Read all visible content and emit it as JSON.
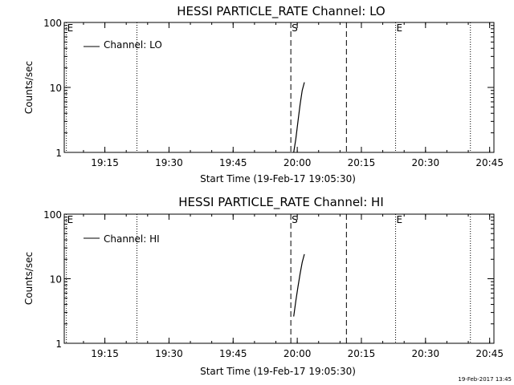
{
  "chart_data": [
    {
      "type": "line",
      "title": "HESSI PARTICLE_RATE Channel: LO",
      "xlabel": "Start Time (19-Feb-17 19:05:30)",
      "ylabel": "Counts/sec",
      "yscale": "log",
      "ylim": [
        1,
        100
      ],
      "xlim": [
        "19:05:30",
        "20:46:00"
      ],
      "xticks": [
        "19:15",
        "19:30",
        "19:45",
        "20:00",
        "20:15",
        "20:30",
        "20:45"
      ],
      "yticks": [
        "1",
        "10",
        "100"
      ],
      "legend": "top-left",
      "series": [
        {
          "name": "Channel: LO",
          "x": [
            "19:59:10",
            "19:59:40",
            "20:00:10",
            "20:00:40",
            "20:01:10",
            "20:01:40"
          ],
          "y": [
            1.0,
            1.6,
            3.0,
            5.5,
            9.0,
            12.0
          ]
        }
      ],
      "markers": [
        {
          "time": "19:06:00",
          "style": "dotted",
          "label": "E"
        },
        {
          "time": "19:22:30",
          "style": "dotted",
          "label": ""
        },
        {
          "time": "19:58:30",
          "style": "dashed",
          "label": "S"
        },
        {
          "time": "20:11:30",
          "style": "dashed",
          "label": ""
        },
        {
          "time": "20:23:00",
          "style": "dotted",
          "label": "E"
        },
        {
          "time": "20:40:30",
          "style": "dotted",
          "label": ""
        }
      ]
    },
    {
      "type": "line",
      "title": "HESSI PARTICLE_RATE Channel: HI",
      "xlabel": "Start Time (19-Feb-17 19:05:30)",
      "ylabel": "Counts/sec",
      "yscale": "log",
      "ylim": [
        1,
        100
      ],
      "xlim": [
        "19:05:30",
        "20:46:00"
      ],
      "xticks": [
        "19:15",
        "19:30",
        "19:45",
        "20:00",
        "20:15",
        "20:30",
        "20:45"
      ],
      "yticks": [
        "1",
        "10",
        "100"
      ],
      "legend": "top-left",
      "series": [
        {
          "name": "Channel: HI",
          "x": [
            "19:59:10",
            "19:59:40",
            "20:00:10",
            "20:00:40",
            "20:01:10",
            "20:01:40"
          ],
          "y": [
            2.6,
            4.5,
            7.5,
            12.0,
            18.0,
            24.0
          ]
        }
      ],
      "markers": [
        {
          "time": "19:06:00",
          "style": "dotted",
          "label": "E"
        },
        {
          "time": "19:22:30",
          "style": "dotted",
          "label": ""
        },
        {
          "time": "19:58:30",
          "style": "dashed",
          "label": "S"
        },
        {
          "time": "20:11:30",
          "style": "dashed",
          "label": ""
        },
        {
          "time": "20:23:00",
          "style": "dotted",
          "label": "E"
        },
        {
          "time": "20:40:30",
          "style": "dotted",
          "label": ""
        }
      ]
    }
  ],
  "footer": {
    "timestamp": "19-Feb-2017 13:45"
  }
}
